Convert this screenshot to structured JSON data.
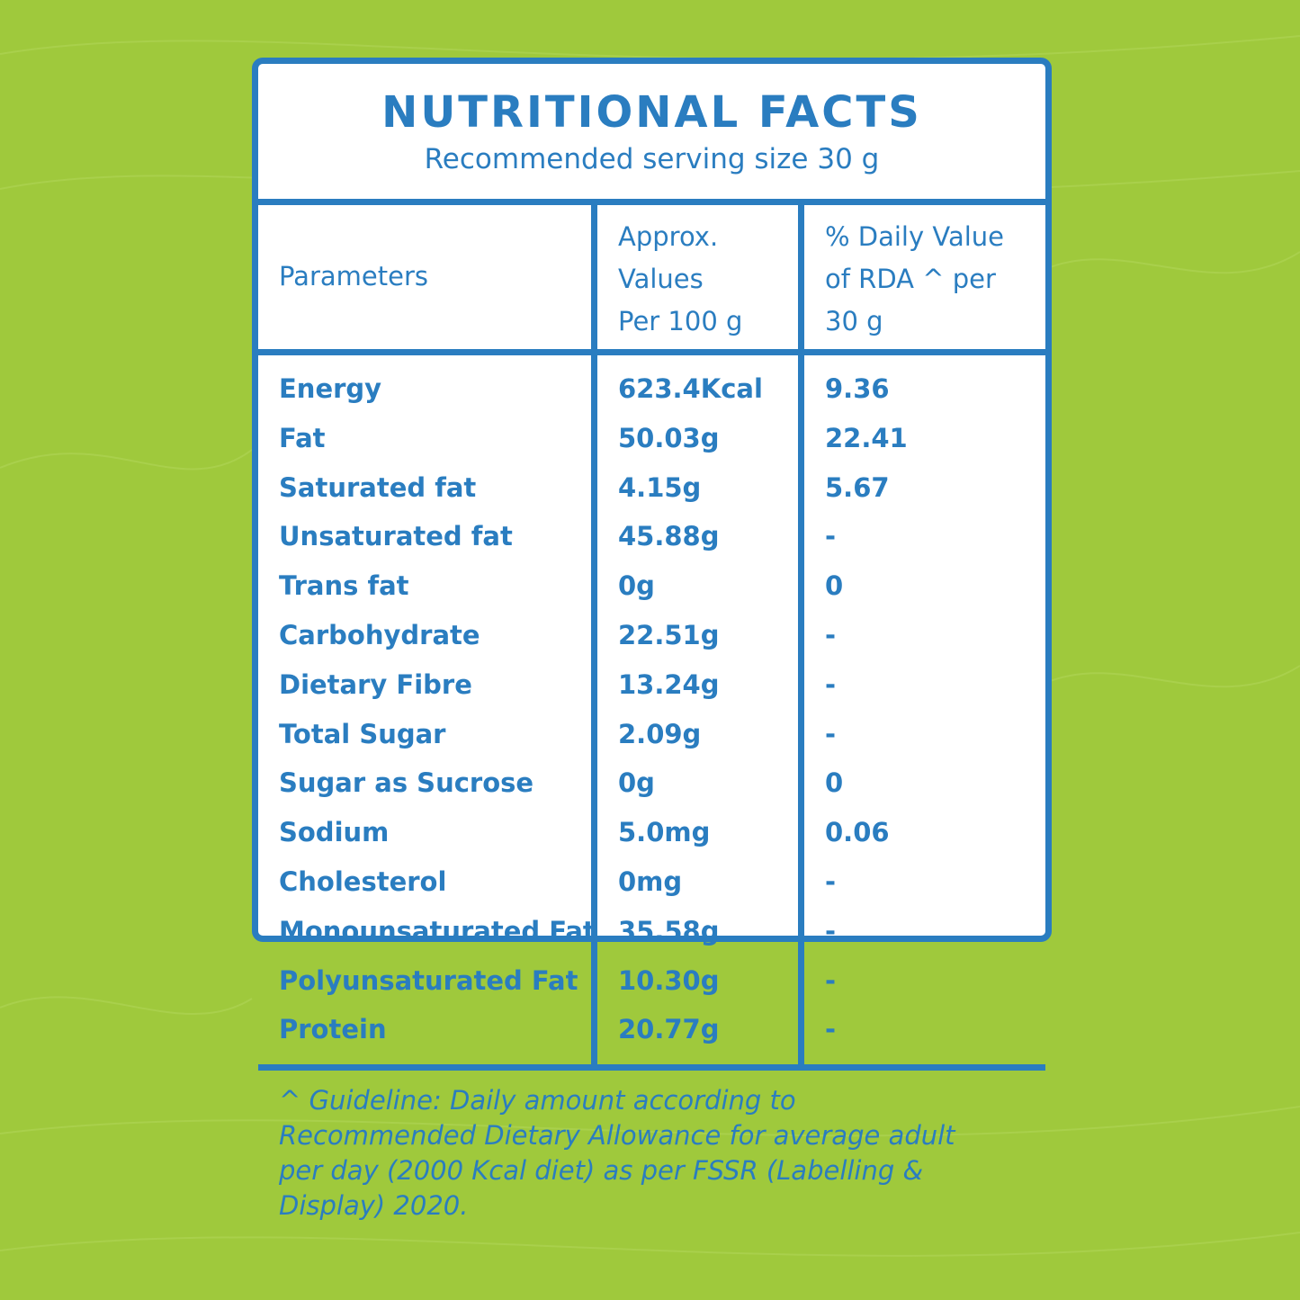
{
  "panel": {
    "title": "NUTRITIONAL FACTS",
    "subtitle": "Recommended serving size 30 g"
  },
  "columns": {
    "parameters": "Parameters",
    "approx_lines": [
      "Approx.",
      "Values",
      "Per 100 g"
    ],
    "daily_lines": [
      "% Daily Value",
      "of RDA ^ per",
      "30 g"
    ]
  },
  "rows": [
    {
      "name": "Energy",
      "value": "623.4Kcal",
      "dv": "9.36"
    },
    {
      "name": "Fat",
      "value": "50.03g",
      "dv": "22.41"
    },
    {
      "name": "Saturated fat",
      "value": "4.15g",
      "dv": "5.67"
    },
    {
      "name": "Unsaturated fat",
      "value": "45.88g",
      "dv": "-"
    },
    {
      "name": "Trans fat",
      "value": "0g",
      "dv": "0"
    },
    {
      "name": "Carbohydrate",
      "value": "22.51g",
      "dv": "-"
    },
    {
      "name": "Dietary Fibre",
      "value": "13.24g",
      "dv": "-"
    },
    {
      "name": "Total Sugar",
      "value": "2.09g",
      "dv": "-"
    },
    {
      "name": "Sugar as Sucrose",
      "value": "0g",
      "dv": "0"
    },
    {
      "name": "Sodium",
      "value": "5.0mg",
      "dv": "0.06"
    },
    {
      "name": "Cholesterol",
      "value": "0mg",
      "dv": "-"
    },
    {
      "name": "Monounsaturated Fat",
      "value": "35.58g",
      "dv": "-"
    },
    {
      "name": "Polyunsaturated Fat",
      "value": "10.30g",
      "dv": "-"
    },
    {
      "name": "Protein",
      "value": "20.77g",
      "dv": "-"
    }
  ],
  "footnote_lines": [
    "^ Guideline: Daily amount according to",
    "Recommended Dietary Allowance for average adult",
    "per day (2000 Kcal diet) as per FSSR (Labelling &",
    "Display) 2020."
  ],
  "colors": {
    "background": "#9fc93c",
    "accent": "#2a7dc0",
    "panel": "#ffffff"
  }
}
